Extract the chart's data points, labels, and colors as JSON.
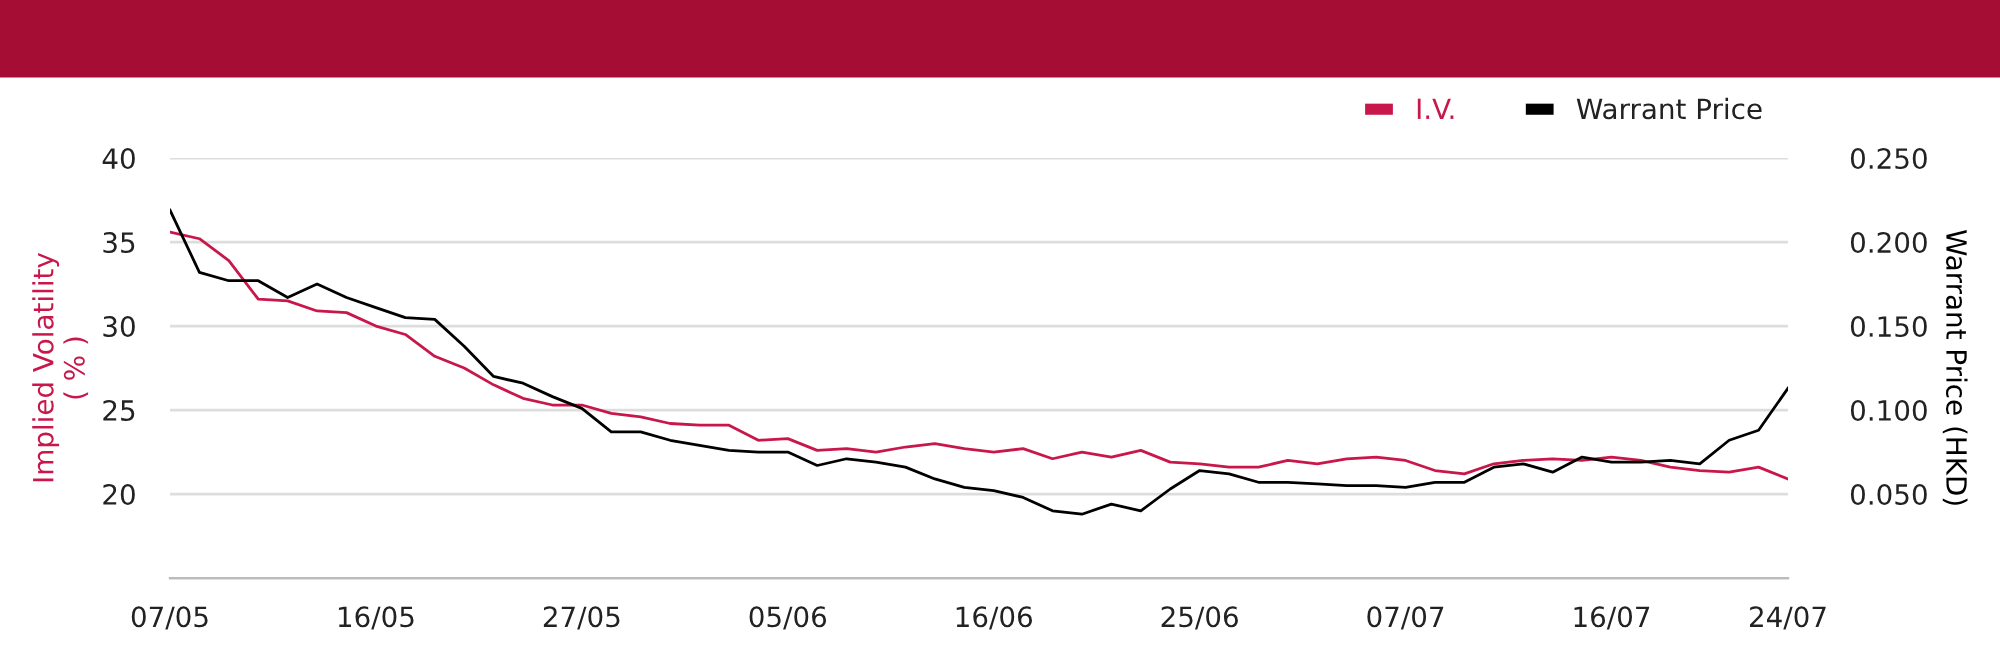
{
  "chart_data": {
    "type": "line",
    "ylabel": "Implied Volatility\n( % )",
    "y2label": "Warrant Price (HKD)",
    "categories": [
      "07/05",
      null,
      null,
      null,
      null,
      null,
      null,
      "16/05",
      null,
      null,
      null,
      null,
      null,
      null,
      "27/05",
      null,
      null,
      null,
      null,
      null,
      null,
      "05/06",
      null,
      null,
      null,
      null,
      null,
      null,
      "16/06",
      null,
      null,
      null,
      null,
      null,
      null,
      "25/06",
      null,
      null,
      null,
      null,
      null,
      null,
      "07/07",
      null,
      null,
      null,
      null,
      null,
      null,
      "16/07",
      null,
      null,
      null,
      null,
      null,
      "24/07"
    ],
    "series": [
      {
        "name": "I.V.",
        "color": "#c8174a",
        "values": [
          35.6,
          35.2,
          33.9,
          31.6,
          31.5,
          30.9,
          30.8,
          30.0,
          29.5,
          28.2,
          27.5,
          26.5,
          25.7,
          25.3,
          25.3,
          24.8,
          24.6,
          24.2,
          24.1,
          24.1,
          23.2,
          23.3,
          22.6,
          22.7,
          22.5,
          22.8,
          23.0,
          22.7,
          22.5,
          22.7,
          22.1,
          22.5,
          22.2,
          22.6,
          21.9,
          21.8,
          21.6,
          21.6,
          22.0,
          21.8,
          22.1,
          22.2,
          22.0,
          21.4,
          21.2,
          21.8,
          22.0,
          22.1,
          22.0,
          22.2,
          22.0,
          21.6,
          21.4,
          21.3,
          21.6,
          20.9
        ]
      },
      {
        "name": "Warrant Price",
        "color": "#000000",
        "axis": "y2",
        "values": [
          0.219,
          0.182,
          0.177,
          0.177,
          0.167,
          0.175,
          0.167,
          0.161,
          0.155,
          0.154,
          0.138,
          0.12,
          0.116,
          0.108,
          0.101,
          0.087,
          0.087,
          0.082,
          0.079,
          0.076,
          0.075,
          0.075,
          0.067,
          0.071,
          0.069,
          0.066,
          0.059,
          0.054,
          0.052,
          0.048,
          0.04,
          0.038,
          0.044,
          0.04,
          0.053,
          0.064,
          0.062,
          0.057,
          0.057,
          0.056,
          0.055,
          0.055,
          0.054,
          0.057,
          0.057,
          0.066,
          0.068,
          0.063,
          0.072,
          0.069,
          0.069,
          0.07,
          0.068,
          0.082,
          0.088,
          0.113
        ]
      }
    ],
    "ylim": [
      15,
      40
    ],
    "yticks": [
      20,
      25,
      30,
      35,
      40
    ],
    "y2lim": [
      0,
      0.25
    ],
    "y2ticks": [
      {
        "value": 0.05,
        "label": "0.050"
      },
      {
        "value": 0.1,
        "label": "0.100"
      },
      {
        "value": 0.15,
        "label": "0.150"
      },
      {
        "value": 0.2,
        "label": "0.200"
      },
      {
        "value": 0.25,
        "label": "0.250"
      }
    ],
    "grid": "y",
    "legend": "top right",
    "marker": "none",
    "line_style": "solid"
  }
}
